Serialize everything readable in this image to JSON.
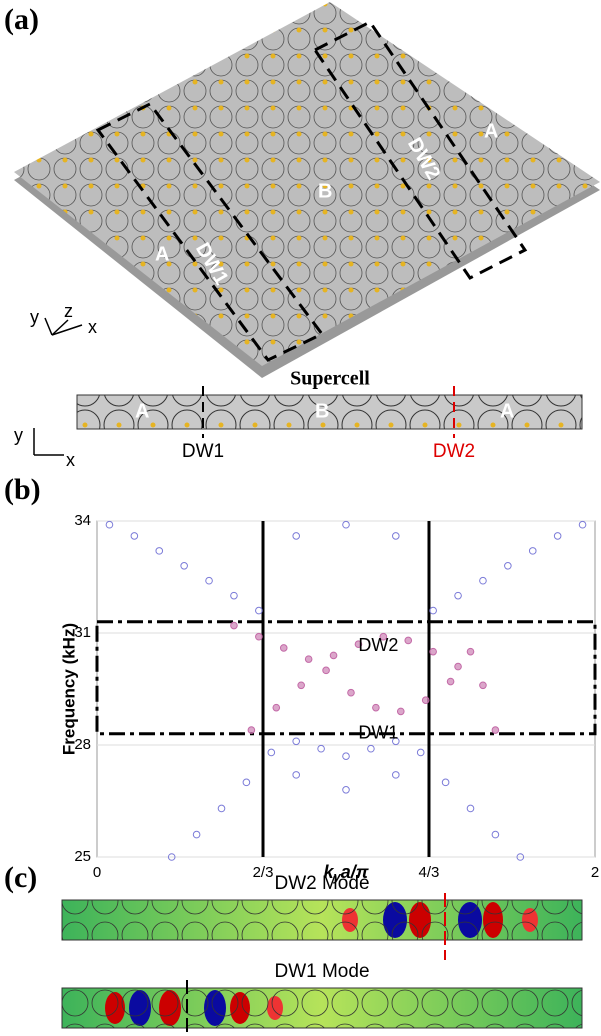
{
  "panel_a": {
    "label": "(a)",
    "regions": [
      "A",
      "DW1",
      "B",
      "DW2",
      "A"
    ],
    "axes": [
      "y",
      "z",
      "x"
    ],
    "supercell": {
      "title": "Supercell",
      "regions": [
        "A",
        "B",
        "A"
      ],
      "axes": [
        "y",
        "x"
      ],
      "walls": [
        "DW1",
        "DW2"
      ]
    }
  },
  "panel_b": {
    "label": "(b)"
  },
  "chart_data": {
    "type": "scatter",
    "ylabel": "Frequency (kHz)",
    "xlabel": [
      "k",
      "y",
      "a/π"
    ],
    "xlim": [
      0,
      2
    ],
    "ylim": [
      25,
      34
    ],
    "xticks": [
      0,
      {
        "value": 0.6667,
        "label": "2/3"
      },
      {
        "value": 1.3333,
        "label": "4/3"
      },
      2
    ],
    "yticks": [
      25,
      28,
      31,
      34
    ],
    "grid": true,
    "highlight_ylim": [
      28.3,
      31.3
    ],
    "annotations": [
      "DW2",
      "DW1"
    ],
    "series": [
      {
        "color": "#7b7bd8",
        "x": [
          0.3,
          0.4,
          0.5,
          0.6,
          0.7,
          0.8,
          0.9,
          1.0,
          1.1,
          1.2,
          1.3,
          1.4,
          1.5,
          1.6,
          1.7,
          0.05,
          0.15,
          0.25,
          0.35,
          0.45,
          0.55,
          0.65,
          1.35,
          1.45,
          1.55,
          1.65,
          1.75,
          1.85,
          1.95,
          0.8,
          1.0,
          1.2,
          0.8,
          1.0,
          1.2
        ],
        "values": [
          25.0,
          25.6,
          26.3,
          27.0,
          27.8,
          28.1,
          27.9,
          27.7,
          27.9,
          28.1,
          27.8,
          27.0,
          26.3,
          25.6,
          25.0,
          33.9,
          33.6,
          33.2,
          32.8,
          32.4,
          32.0,
          31.6,
          31.6,
          32.0,
          32.4,
          32.8,
          33.2,
          33.6,
          33.9,
          33.6,
          33.9,
          33.6,
          27.2,
          26.8,
          27.2
        ]
      },
      {
        "color": "#c36aa7",
        "x": [
          0.55,
          0.65,
          0.75,
          0.85,
          0.95,
          1.05,
          1.15,
          1.25,
          1.35,
          1.45,
          1.55,
          0.62,
          0.72,
          0.82,
          0.92,
          1.02,
          1.12,
          1.22,
          1.32,
          1.42,
          1.5,
          1.6
        ],
        "values": [
          31.2,
          30.9,
          30.6,
          30.3,
          30.4,
          30.7,
          30.9,
          30.8,
          30.5,
          30.1,
          29.6,
          28.4,
          29.0,
          29.6,
          30.0,
          29.4,
          29.0,
          28.9,
          29.2,
          29.7,
          30.5,
          28.4
        ]
      }
    ]
  },
  "panel_c": {
    "label": "(c)",
    "modes": [
      "DW2 Mode",
      "DW1 Mode"
    ]
  }
}
